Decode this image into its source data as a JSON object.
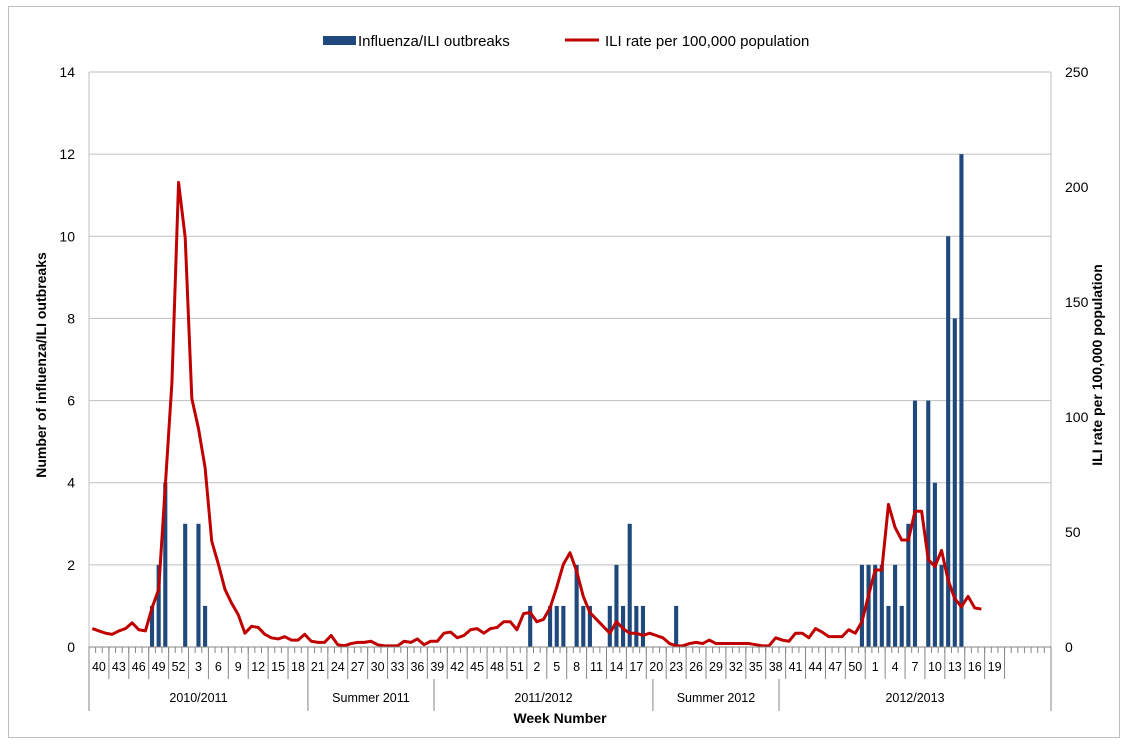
{
  "chart_data": {
    "type": "bar+line",
    "legend": {
      "position": "top",
      "bar_label": "Influenza/ILI outbreaks",
      "line_label": "ILI rate per 100,000 population"
    },
    "xlabel": "Week Number",
    "ylabel_left": "Number of influenza/ILI outbreaks",
    "ylabel_right": "ILI rate per 100,000 population",
    "ylim_left": [
      0,
      14
    ],
    "yticks_left": [
      "0",
      "2",
      "4",
      "6",
      "8",
      "10",
      "12",
      "14"
    ],
    "ylim_right": [
      0,
      250
    ],
    "yticks_right": [
      "0",
      "50",
      "100",
      "150",
      "200",
      "250"
    ],
    "grid": true,
    "colors": {
      "bar": "#1f497d",
      "line": "#c00000",
      "grid": "#bfbfbf"
    },
    "n_weeks": 145,
    "tick_labels": [
      "40",
      "43",
      "46",
      "49",
      "52",
      "3",
      "6",
      "9",
      "12",
      "15",
      "18",
      "21",
      "24",
      "27",
      "30",
      "33",
      "36",
      "39",
      "42",
      "45",
      "48",
      "51",
      "2",
      "5",
      "8",
      "11",
      "14",
      "17",
      "20",
      "23",
      "26",
      "29",
      "32",
      "35",
      "38",
      "41",
      "44",
      "47",
      "50",
      "1",
      "4",
      "7",
      "10",
      "13",
      "16",
      "19"
    ],
    "periods": [
      {
        "label": "2010/2011",
        "start": 0,
        "end": 33
      },
      {
        "label": "Summer 2011",
        "start": 33,
        "end": 52
      },
      {
        "label": "2011/2012",
        "start": 52,
        "end": 85
      },
      {
        "label": "Summer 2012",
        "start": 85,
        "end": 104
      },
      {
        "label": "2012/2013",
        "start": 104,
        "end": 145
      }
    ],
    "bars": [
      [
        9,
        1
      ],
      [
        10,
        2
      ],
      [
        11,
        4
      ],
      [
        14,
        3
      ],
      [
        16,
        3
      ],
      [
        17,
        1
      ],
      [
        66,
        1
      ],
      [
        69,
        1
      ],
      [
        70,
        1
      ],
      [
        71,
        1
      ],
      [
        73,
        2
      ],
      [
        74,
        1
      ],
      [
        75,
        1
      ],
      [
        78,
        1
      ],
      [
        79,
        2
      ],
      [
        80,
        1
      ],
      [
        81,
        3
      ],
      [
        82,
        1
      ],
      [
        83,
        1
      ],
      [
        88,
        1
      ],
      [
        116,
        2
      ],
      [
        117,
        2
      ],
      [
        118,
        2
      ],
      [
        119,
        2
      ],
      [
        120,
        1
      ],
      [
        121,
        2
      ],
      [
        122,
        1
      ],
      [
        123,
        3
      ],
      [
        124,
        6
      ],
      [
        126,
        6
      ],
      [
        127,
        4
      ],
      [
        128,
        2
      ],
      [
        129,
        10
      ],
      [
        130,
        8
      ],
      [
        131,
        12
      ]
    ],
    "line": [
      8,
      7,
      6,
      5.5,
      7,
      8,
      10.5,
      7.5,
      7,
      17,
      25,
      70,
      115,
      202,
      178,
      108,
      95,
      78,
      46,
      36,
      25,
      19,
      14,
      6,
      9,
      8.5,
      5.5,
      4,
      3.5,
      4.5,
      3,
      3,
      5.5,
      2.5,
      2,
      2,
      5,
      1,
      0.5,
      1.5,
      2,
      2,
      2.5,
      1,
      0.5,
      0.5,
      0.5,
      2.5,
      2,
      3.5,
      1,
      2.5,
      2.5,
      6,
      6.5,
      4,
      5,
      7.5,
      8,
      6,
      8,
      8.5,
      11,
      11,
      7.5,
      14.5,
      15,
      11,
      12,
      17,
      26,
      36,
      41,
      33,
      22,
      15,
      12,
      9,
      6,
      11,
      8,
      6,
      6,
      5,
      6,
      5,
      4,
      1.5,
      0.5,
      0.5,
      1.5,
      2,
      1.5,
      3,
      1.5,
      1.5,
      1.5,
      1.5,
      1.5,
      1.5,
      1,
      0.5,
      0.5,
      4,
      3,
      2.5,
      6,
      6,
      4,
      8,
      6.5,
      4.5,
      4.5,
      4.5,
      7.5,
      6,
      11,
      22.5,
      33.5,
      33.5,
      62,
      52,
      46.5,
      46.5,
      59,
      59,
      38,
      35,
      42,
      29,
      21,
      17.5,
      22,
      17,
      16.5
    ]
  }
}
